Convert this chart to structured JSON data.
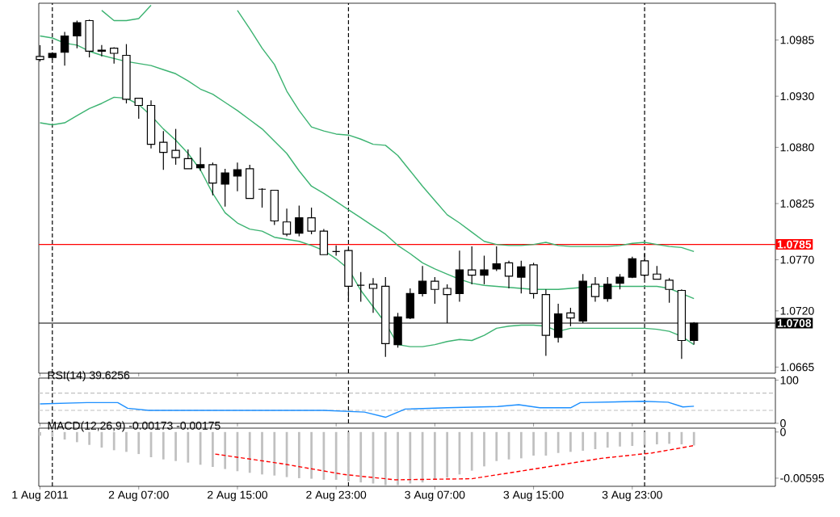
{
  "chart_data": [
    {
      "type": "candlestick",
      "x": [
        "2011-08-01T23:00",
        "2011-08-02T00:00",
        "2011-08-02T01:00",
        "2011-08-02T02:00",
        "2011-08-02T03:00",
        "2011-08-02T04:00",
        "2011-08-02T05:00",
        "2011-08-02T06:00",
        "2011-08-02T07:00",
        "2011-08-02T08:00",
        "2011-08-02T09:00",
        "2011-08-02T10:00",
        "2011-08-02T11:00",
        "2011-08-02T12:00",
        "2011-08-02T13:00",
        "2011-08-02T14:00",
        "2011-08-02T15:00",
        "2011-08-02T16:00",
        "2011-08-02T17:00",
        "2011-08-02T18:00",
        "2011-08-02T19:00",
        "2011-08-02T20:00",
        "2011-08-02T21:00",
        "2011-08-02T22:00",
        "2011-08-02T23:00",
        "2011-08-03T00:00",
        "2011-08-03T01:00",
        "2011-08-03T02:00",
        "2011-08-03T03:00",
        "2011-08-03T04:00",
        "2011-08-03T05:00",
        "2011-08-03T06:00",
        "2011-08-03T07:00",
        "2011-08-03T08:00",
        "2011-08-03T09:00",
        "2011-08-03T10:00",
        "2011-08-03T11:00",
        "2011-08-03T12:00",
        "2011-08-03T13:00",
        "2011-08-03T14:00",
        "2011-08-03T15:00",
        "2011-08-03T16:00",
        "2011-08-03T17:00",
        "2011-08-03T18:00",
        "2011-08-03T19:00",
        "2011-08-03T20:00",
        "2011-08-03T21:00",
        "2011-08-03T22:00",
        "2011-08-03T23:00",
        "2011-08-04T00:00",
        "2011-08-04T01:00",
        "2011-08-04T02:00",
        "2011-08-04T03:00",
        "2011-08-04T04:00"
      ],
      "ohlc": [
        [
          1.0966,
          1.098,
          1.0964,
          1.0969
        ],
        [
          1.0972,
          1.0973,
          1.0966,
          1.0968
        ],
        [
          1.0989,
          1.0993,
          1.096,
          1.0973
        ],
        [
          1.1002,
          1.1004,
          1.0977,
          1.0989
        ],
        [
          1.0974,
          1.1005,
          1.0968,
          1.1004
        ],
        [
          1.0975,
          1.098,
          1.0969,
          1.0974
        ],
        [
          1.0972,
          1.0978,
          1.0962,
          1.0977
        ],
        [
          1.0927,
          1.0981,
          1.0923,
          1.097
        ],
        [
          1.0921,
          1.0928,
          1.0908,
          1.0928
        ],
        [
          1.0883,
          1.0926,
          1.0879,
          1.0921
        ],
        [
          1.0875,
          1.0896,
          1.0858,
          1.0885
        ],
        [
          1.087,
          1.0898,
          1.0863,
          1.0877
        ],
        [
          1.0859,
          1.0878,
          1.0859,
          1.0869
        ],
        [
          1.0863,
          1.088,
          1.0857,
          1.086
        ],
        [
          1.0845,
          1.0865,
          1.0833,
          1.0863
        ],
        [
          1.0855,
          1.0859,
          1.0822,
          1.0844
        ],
        [
          1.0858,
          1.0865,
          1.0837,
          1.0852
        ],
        [
          1.083,
          1.0863,
          1.083,
          1.0859
        ],
        [
          1.0839,
          1.084,
          1.0821,
          1.0839
        ],
        [
          1.0808,
          1.0838,
          1.0804,
          1.0838
        ],
        [
          1.0795,
          1.082,
          1.0793,
          1.0807
        ],
        [
          1.0811,
          1.0823,
          1.0793,
          1.0796
        ],
        [
          1.0798,
          1.0821,
          1.0795,
          1.0811
        ],
        [
          1.0775,
          1.08,
          1.0775,
          1.0798
        ],
        [
          1.0778,
          1.0784,
          1.0774,
          1.0778
        ],
        [
          1.0744,
          1.0781,
          1.0729,
          1.0779
        ],
        [
          1.0745,
          1.0758,
          1.0729,
          1.0745
        ],
        [
          1.0742,
          1.0752,
          1.0718,
          1.0746
        ],
        [
          1.0688,
          1.0753,
          1.0675,
          1.0744
        ],
        [
          1.0714,
          1.0718,
          1.0684,
          1.0687
        ],
        [
          1.0737,
          1.0742,
          1.0712,
          1.0713
        ],
        [
          1.0749,
          1.0764,
          1.0734,
          1.0737
        ],
        [
          1.0741,
          1.0753,
          1.0727,
          1.0749
        ],
        [
          1.0736,
          1.0746,
          1.0708,
          1.0742
        ],
        [
          1.076,
          1.0779,
          1.0729,
          1.0737
        ],
        [
          1.0755,
          1.0783,
          1.0746,
          1.076
        ],
        [
          1.076,
          1.0774,
          1.0746,
          1.0755
        ],
        [
          1.0766,
          1.0783,
          1.0759,
          1.0761
        ],
        [
          1.0754,
          1.0769,
          1.0742,
          1.0767
        ],
        [
          1.0763,
          1.0769,
          1.0737,
          1.0753
        ],
        [
          1.0737,
          1.0767,
          1.0732,
          1.0765
        ],
        [
          1.0696,
          1.0741,
          1.0676,
          1.0736
        ],
        [
          1.0717,
          1.0727,
          1.0689,
          1.0694
        ],
        [
          1.0713,
          1.0723,
          1.0705,
          1.0718
        ],
        [
          1.0749,
          1.0756,
          1.0708,
          1.071
        ],
        [
          1.0734,
          1.0753,
          1.0729,
          1.0746
        ],
        [
          1.0746,
          1.0753,
          1.0729,
          1.0732
        ],
        [
          1.0753,
          1.0756,
          1.0741,
          1.0747
        ],
        [
          1.0771,
          1.0773,
          1.0752,
          1.0753
        ],
        [
          1.0755,
          1.0776,
          1.0751,
          1.0769
        ],
        [
          1.0751,
          1.0764,
          1.0751,
          1.0756
        ],
        [
          1.0741,
          1.0752,
          1.0728,
          1.075
        ],
        [
          1.0691,
          1.0741,
          1.0673,
          1.074
        ],
        [
          1.0708,
          1.0709,
          1.0687,
          1.0691
        ]
      ],
      "series": [
        {
          "type": "line",
          "color": "#3cb371",
          "values": [
            null,
            null,
            null,
            null,
            null,
            1.1014,
            1.1004,
            1.1004,
            1.1006,
            1.1019,
            null,
            null,
            null,
            null,
            null,
            null,
            1.1014,
            1.0996,
            1.0977,
            1.0961,
            1.0935,
            1.0916,
            1.09,
            1.0896,
            1.0893,
            1.0892,
            1.0888,
            1.0883,
            1.0882,
            1.0872,
            1.0857,
            1.0842,
            1.0828,
            1.0814,
            1.0806,
            1.0797,
            1.0788,
            1.0785,
            1.0784,
            1.0784,
            1.0785,
            1.0787,
            1.0784,
            1.0783,
            1.0783,
            1.0783,
            1.0783,
            1.0784,
            1.0786,
            1.0787,
            1.0785,
            1.0783,
            1.0782,
            1.0778
          ]
        },
        {
          "type": "line",
          "color": "#3cb371",
          "values": [
            1.0989,
            1.0987,
            1.0982,
            1.098,
            1.0974,
            1.097,
            1.0967,
            1.0964,
            1.0962,
            1.096,
            1.0956,
            1.0952,
            1.0945,
            1.0937,
            1.0932,
            1.0924,
            1.0916,
            1.0907,
            1.0898,
            1.0886,
            1.0874,
            1.0857,
            1.0842,
            1.0835,
            1.0827,
            1.0819,
            1.0811,
            1.0803,
            1.0795,
            1.0784,
            1.0776,
            1.0767,
            1.0761,
            1.0756,
            1.0751,
            1.0747,
            1.0745,
            1.0744,
            1.0743,
            1.0742,
            1.0741,
            1.0741,
            1.0741,
            1.0742,
            1.0743,
            1.0744,
            1.0744,
            1.0744,
            1.0744,
            1.0744,
            1.0744,
            1.0742,
            1.0737,
            1.0732
          ]
        },
        {
          "type": "line",
          "color": "#3cb371",
          "values": [
            1.0904,
            1.0902,
            1.0904,
            1.0911,
            1.0918,
            1.0923,
            1.0929,
            1.0928,
            1.0922,
            1.0911,
            1.0898,
            1.0887,
            1.0874,
            1.0858,
            1.0835,
            1.0816,
            1.0806,
            1.08,
            1.0798,
            1.0792,
            1.079,
            1.0788,
            1.0784,
            1.0779,
            1.0771,
            1.0761,
            1.074,
            1.0724,
            1.0708,
            1.0687,
            1.0685,
            1.0685,
            1.0687,
            1.069,
            1.0692,
            1.0691,
            1.0696,
            1.0703,
            1.0705,
            1.0706,
            1.0706,
            1.0705,
            1.07,
            1.0703,
            1.0703,
            1.0703,
            1.0703,
            1.0703,
            1.0703,
            1.0703,
            1.0702,
            1.07,
            1.0695,
            1.0687
          ]
        }
      ],
      "xlim": [
        "2011-08-01T22:54",
        "2011-08-04T10:36"
      ],
      "ylim": [
        1.0659,
        1.1021
      ],
      "xticks": [
        {
          "value": "2011-08-01T23:00",
          "label": null
        },
        {
          "value": "2011-08-02T07:00",
          "label": null
        },
        {
          "value": "2011-08-02T15:00",
          "label": null
        },
        {
          "value": "2011-08-02T23:00",
          "label": null
        },
        {
          "value": "2011-08-03T07:00",
          "label": null
        },
        {
          "value": "2011-08-03T15:00",
          "label": null
        },
        {
          "value": "2011-08-03T23:00",
          "label": null
        }
      ],
      "yticks": [
        1.0985,
        {
          "value": 1.093,
          "label": "1.0930"
        },
        {
          "value": 1.088,
          "label": "1.0880"
        },
        1.0825,
        {
          "value": 1.077,
          "label": "1.0770"
        },
        {
          "value": 1.072,
          "label": "1.0720"
        },
        1.0665
      ],
      "tick_labels": "y",
      "ref_lines": [
        {
          "axis": "y",
          "value": 1.0785,
          "label": "1.0785",
          "color": "#ff0000"
        },
        {
          "axis": "y",
          "value": 1.0708,
          "label": "1.0708",
          "color": "#000000"
        },
        {
          "axis": "x",
          "value": "2011-08-02T00:00",
          "color": "#000000",
          "line_style": "dashed"
        },
        {
          "axis": "x",
          "value": "2011-08-03T00:00",
          "color": "#000000",
          "line_style": "dashed"
        },
        {
          "axis": "x",
          "value": "2011-08-04T00:00",
          "color": "#000000",
          "line_style": "dashed"
        }
      ]
    },
    {
      "type": "line",
      "title": "RSI(14) 39.6256",
      "series": [
        {
          "color": "#1e90ff",
          "x": [
            "2011-08-01T23:00",
            "2011-08-02T02:48",
            "2011-08-02T05:18",
            "2011-08-02T06:06",
            "2011-08-02T07:48",
            "2011-08-02T22:00",
            "2011-08-03T01:18",
            "2011-08-03T03:00",
            "2011-08-03T04:36",
            "2011-08-03T08:00",
            "2011-08-03T12:06",
            "2011-08-03T13:48",
            "2011-08-03T15:30",
            "2011-08-03T18:00",
            "2011-08-03T18:48",
            "2011-08-03T23:48",
            "2011-08-04T01:54",
            "2011-08-04T03:06",
            "2011-08-04T04:00"
          ],
          "values": [
            45,
            48,
            48,
            35,
            30,
            30,
            26,
            14,
            33,
            36,
            39,
            43,
            36,
            36,
            48,
            51,
            49,
            38,
            39.6
          ]
        }
      ],
      "xlim": [
        "2011-08-01T22:54",
        "2011-08-04T10:36"
      ],
      "ylim": [
        0,
        105
      ],
      "yticks": [
        0,
        100
      ],
      "tick_labels": "y",
      "xticks": [
        {
          "value": "2011-08-01T23:00",
          "label": null
        },
        {
          "value": "2011-08-02T07:00",
          "label": null
        },
        {
          "value": "2011-08-02T15:00",
          "label": null
        },
        {
          "value": "2011-08-02T23:00",
          "label": null
        },
        {
          "value": "2011-08-03T07:00",
          "label": null
        },
        {
          "value": "2011-08-03T15:00",
          "label": null
        },
        {
          "value": "2011-08-03T23:00",
          "label": null
        }
      ],
      "ref_lines": [
        {
          "axis": "y",
          "value": 70,
          "color": "#c0c0c0",
          "line_style": "dashed"
        },
        {
          "axis": "y",
          "value": 30,
          "color": "#c0c0c0",
          "line_style": "dashed"
        },
        {
          "axis": "x",
          "value": "2011-08-02T00:00",
          "color": "#000000",
          "line_style": "dashed"
        },
        {
          "axis": "x",
          "value": "2011-08-03T00:00",
          "color": "#000000",
          "line_style": "dashed"
        },
        {
          "axis": "x",
          "value": "2011-08-04T00:00",
          "color": "#000000",
          "line_style": "dashed"
        }
      ]
    },
    {
      "type": "bar",
      "title": "MACD(12,26,9) -0.00173 -0.00175",
      "x": [
        "2011-08-01T23:00",
        "2011-08-02T00:00",
        "2011-08-02T01:00",
        "2011-08-02T02:00",
        "2011-08-02T03:00",
        "2011-08-02T04:00",
        "2011-08-02T05:00",
        "2011-08-02T06:00",
        "2011-08-02T07:00",
        "2011-08-02T08:00",
        "2011-08-02T09:00",
        "2011-08-02T10:00",
        "2011-08-02T11:00",
        "2011-08-02T12:00",
        "2011-08-02T13:00",
        "2011-08-02T14:00",
        "2011-08-02T15:00",
        "2011-08-02T16:00",
        "2011-08-02T17:00",
        "2011-08-02T18:00",
        "2011-08-02T19:00",
        "2011-08-02T20:00",
        "2011-08-02T21:00",
        "2011-08-02T22:00",
        "2011-08-02T23:00",
        "2011-08-03T00:00",
        "2011-08-03T01:00",
        "2011-08-03T02:00",
        "2011-08-03T03:00",
        "2011-08-03T04:00",
        "2011-08-03T05:00",
        "2011-08-03T06:00",
        "2011-08-03T07:00",
        "2011-08-03T08:00",
        "2011-08-03T09:00",
        "2011-08-03T10:00",
        "2011-08-03T11:00",
        "2011-08-03T12:00",
        "2011-08-03T13:00",
        "2011-08-03T14:00",
        "2011-08-03T15:00",
        "2011-08-03T16:00",
        "2011-08-03T17:00",
        "2011-08-03T18:00",
        "2011-08-03T19:00",
        "2011-08-03T20:00",
        "2011-08-03T21:00",
        "2011-08-03T22:00",
        "2011-08-03T23:00",
        "2011-08-04T00:00",
        "2011-08-04T01:00",
        "2011-08-04T02:00",
        "2011-08-04T03:00",
        "2011-08-04T04:00"
      ],
      "values": [
        -0.00048,
        -0.00062,
        -0.00097,
        -0.00131,
        -0.00166,
        -0.00201,
        -0.00235,
        -0.00256,
        -0.00284,
        -0.00325,
        -0.00353,
        -0.00374,
        -0.00394,
        -0.00422,
        -0.0045,
        -0.00477,
        -0.00505,
        -0.00526,
        -0.00547,
        -0.00561,
        -0.00581,
        -0.00595,
        -0.00602,
        -0.00616,
        -0.00616,
        -0.00637,
        -0.0065,
        -0.00664,
        -0.00685,
        -0.00685,
        -0.00664,
        -0.0065,
        -0.00616,
        -0.00588,
        -0.00547,
        -0.00498,
        -0.00443,
        -0.00374,
        -0.00353,
        -0.00339,
        -0.00304,
        -0.00304,
        -0.0027,
        -0.00256,
        -0.00242,
        -0.00221,
        -0.00201,
        -0.00187,
        -0.0018,
        -0.00166,
        -0.00159,
        -0.00152,
        -0.00159,
        -0.00173
      ],
      "color": "#c0c0c0",
      "series": [
        {
          "type": "line",
          "color": "#ff0000",
          "line_style": "dashed",
          "x": [
            "2011-08-02T13:12",
            "2011-08-02T18:36",
            "2011-08-02T23:36",
            "2011-08-03T03:48",
            "2011-08-03T10:00",
            "2011-08-03T14:12",
            "2011-08-03T20:30",
            "2011-08-04T00:36",
            "2011-08-04T04:00"
          ],
          "values": [
            -0.00284,
            -0.00408,
            -0.00547,
            -0.00616,
            -0.00602,
            -0.00498,
            -0.00339,
            -0.0027,
            -0.00175
          ]
        }
      ],
      "xlim": [
        "2011-08-01T22:54",
        "2011-08-04T10:36"
      ],
      "ylim": [
        -0.007,
        0.0005
      ],
      "yticks": [
        0,
        -0.00595
      ],
      "xticks": [
        {
          "value": "2011-08-01T23:00",
          "label": "1 Aug 2011"
        },
        {
          "value": "2011-08-02T07:00",
          "label": "2 Aug 07:00"
        },
        {
          "value": "2011-08-02T15:00",
          "label": "2 Aug 15:00"
        },
        {
          "value": "2011-08-02T23:00",
          "label": "2 Aug 23:00"
        },
        {
          "value": "2011-08-03T07:00",
          "label": "3 Aug 07:00"
        },
        {
          "value": "2011-08-03T15:00",
          "label": "3 Aug 15:00"
        },
        {
          "value": "2011-08-03T23:00",
          "label": "3 Aug 23:00"
        }
      ],
      "ref_lines": [
        {
          "axis": "x",
          "value": "2011-08-02T00:00",
          "color": "#000000",
          "line_style": "dashed"
        },
        {
          "axis": "x",
          "value": "2011-08-03T00:00",
          "color": "#000000",
          "line_style": "dashed"
        },
        {
          "axis": "x",
          "value": "2011-08-04T00:00",
          "color": "#000000",
          "line_style": "dashed"
        }
      ]
    }
  ]
}
